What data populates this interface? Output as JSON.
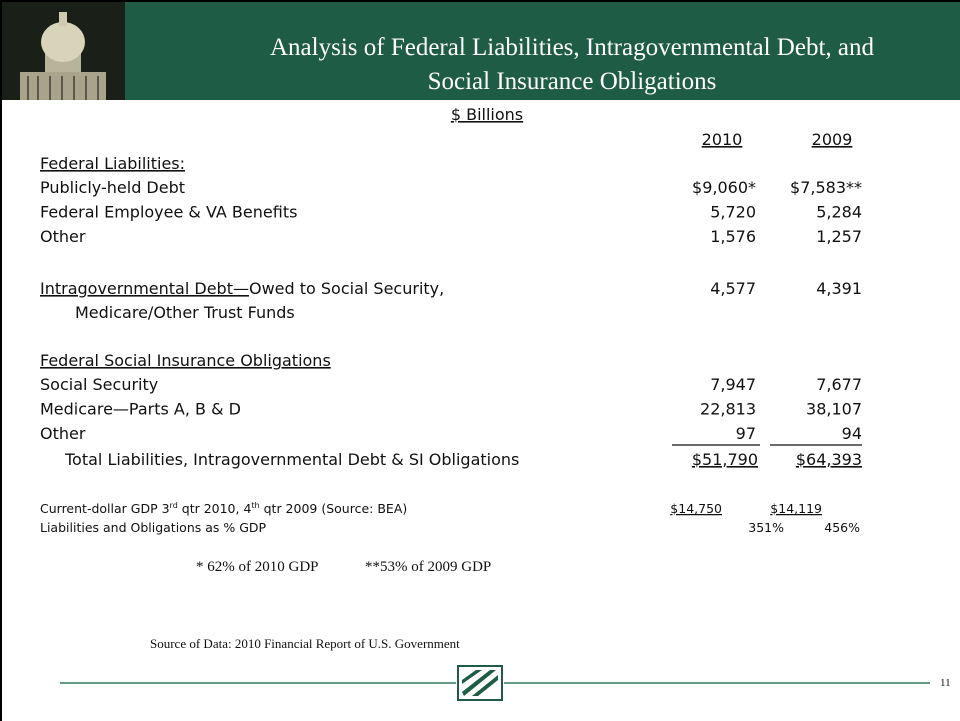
{
  "header": {
    "title_lines": [
      "Analysis of Federal Liabilities, Intragovernmental Debt, and",
      "Social Insurance Obligations"
    ]
  },
  "units": "$ Billions",
  "columns": [
    "2010",
    "2009"
  ],
  "sections": {
    "federal_liabilities": {
      "heading": "Federal Liabilities:",
      "rows": [
        {
          "label": "Publicly-held Debt",
          "values": [
            "$9,060*",
            "$7,583**"
          ]
        },
        {
          "label": "Federal Employee & VA Benefits",
          "values": [
            "5,720",
            "5,284"
          ]
        },
        {
          "label": "Other",
          "values": [
            "1,576",
            "1,257"
          ]
        }
      ]
    },
    "intragovernmental": {
      "heading": "Intragovernmental Debt—",
      "label": "Owed to Social Security,",
      "label_line2": "Medicare/Other Trust Funds",
      "values": [
        "4,577",
        "4,391"
      ]
    },
    "social_insurance": {
      "heading": "Federal Social Insurance Obligations",
      "rows": [
        {
          "label": "Social Security",
          "values": [
            "7,947",
            "7,677"
          ]
        },
        {
          "label": "Medicare—Parts A, B & D",
          "values": [
            "22,813",
            "38,107"
          ]
        },
        {
          "label": "Other",
          "values": [
            "97",
            "94"
          ]
        }
      ]
    },
    "total": {
      "label": "Total Liabilities, Intragovernmental Debt & SI Obligations",
      "values": [
        "$51,790",
        "$64,393"
      ]
    },
    "gdp": {
      "label_parts": [
        "Current-dollar GDP 3",
        "rd",
        " qtr 2010, 4",
        "th",
        " qtr 2009 (Source: BEA)"
      ],
      "values": [
        "$14,750",
        "$14,119"
      ]
    },
    "percent_gdp": {
      "label": "Liabilities and Obligations as % GDP",
      "values": [
        "351%",
        "456%"
      ]
    }
  },
  "footnotes": [
    "* 62% of 2010 GDP",
    "**53% of 2009 GDP"
  ],
  "source": "Source of Data: 2010 Financial Report of U.S. Government",
  "page_number": "11"
}
